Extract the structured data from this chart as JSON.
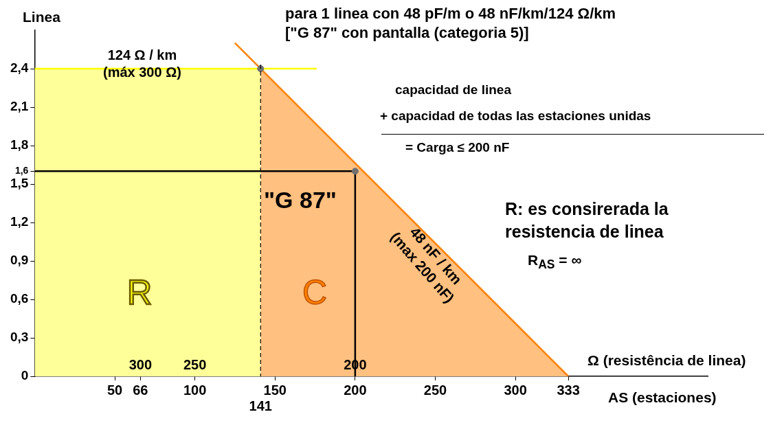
{
  "chart_data": {
    "type": "area",
    "title": "para 1 linea con 48 pF/m  o 48 nF/km/124 Ω/km",
    "subtitle": "[\"G 87\" con pantalla (categoria 5)]",
    "xlabel": "AS (estaciones)",
    "ylabel": "Linea",
    "xlim": [
      0,
      420
    ],
    "xticks": [
      50,
      66,
      100,
      150,
      200,
      250,
      300,
      333
    ],
    "ylim": [
      0,
      2.7
    ],
    "yticks": [
      {
        "value": 0,
        "label": "0"
      },
      {
        "value": 0.3,
        "label": "0,3"
      },
      {
        "value": 0.6,
        "label": "0,6"
      },
      {
        "value": 0.9,
        "label": "0,9"
      },
      {
        "value": 1.2,
        "label": "1,2"
      },
      {
        "value": 1.5,
        "label": "1,5"
      },
      {
        "value": 1.6,
        "label": "1,6"
      },
      {
        "value": 1.8,
        "label": "1,8"
      },
      {
        "value": 2.1,
        "label": "2,1"
      },
      {
        "value": 2.4,
        "label": "2,4"
      }
    ],
    "grid": false,
    "legend": false,
    "series": [
      {
        "type": "area",
        "color": "#ffff99",
        "x": [
          0,
          141
        ],
        "values": [
          2.4,
          2.4
        ]
      },
      {
        "type": "area",
        "color": "#ffc080",
        "x": [
          141,
          333
        ],
        "values": [
          2.4,
          0
        ]
      },
      {
        "type": "line",
        "color": "#ff8000",
        "x": [
          125,
          333
        ],
        "values": [
          2.6,
          0
        ]
      },
      {
        "type": "line",
        "color": "#ffff00",
        "x": [
          0,
          176
        ],
        "values": [
          2.4,
          2.4
        ]
      },
      {
        "type": "line",
        "color": "#000000",
        "x": [
          0,
          200,
          200
        ],
        "values": [
          1.6,
          1.6,
          0
        ]
      },
      {
        "type": "scatter",
        "color": "#707070",
        "marker": "circle",
        "x": [
          141,
          200
        ],
        "values": [
          2.4,
          1.6
        ]
      }
    ],
    "ref_lines": [
      {
        "axis": "x",
        "value": 141,
        "label": "141",
        "line_style": "dashed",
        "color": "#000000"
      }
    ],
    "annotations": [
      "124 Ω / km\n(máx 300 Ω)",
      "capacidad de linea",
      "+ capacidad de todas las estaciones unidas",
      "= Carga ≤ 200 nF",
      "R: es consirerada la\nresistencia de linea",
      "R$_{AS}$ = ∞",
      "R",
      "C",
      "\"G 87\"",
      "48 nF / km\n(max 200 nF)",
      {
        "text": "300",
        "x": 66,
        "y": 0
      },
      {
        "text": "250",
        "x": 100,
        "y": 0
      },
      {
        "text": "200",
        "x": 200,
        "y": 0
      },
      "Ω (resistência de linea)"
    ]
  }
}
